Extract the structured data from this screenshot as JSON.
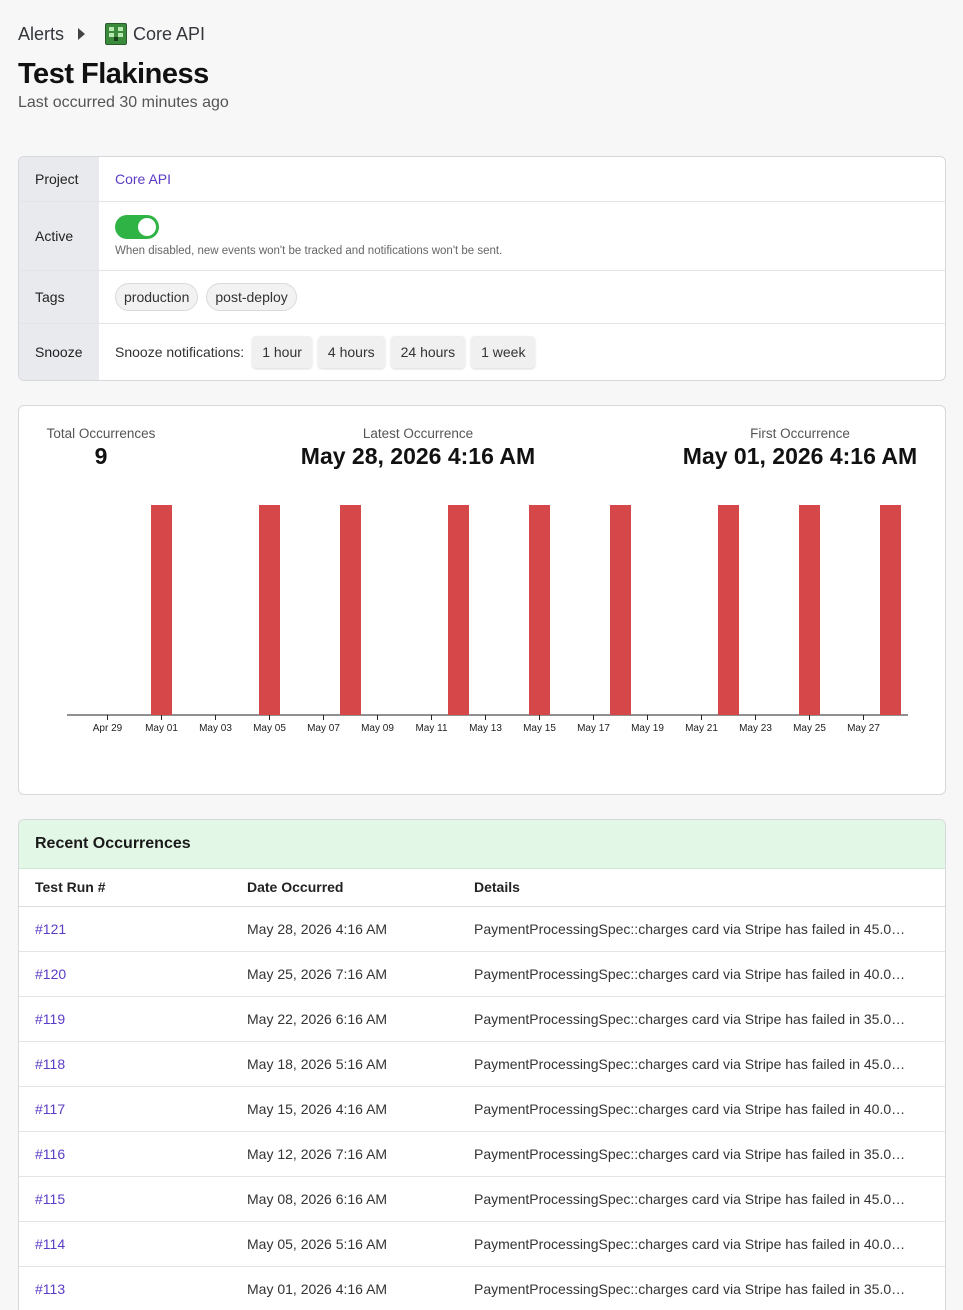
{
  "breadcrumb": {
    "root": "Alerts",
    "project": "Core API"
  },
  "title": "Test Flakiness",
  "subtitle": "Last occurred 30 minutes ago",
  "properties": {
    "project_label": "Project",
    "project_value": "Core API",
    "active_label": "Active",
    "active_on": true,
    "active_hint": "When disabled, new events won't be tracked and notifications won't be sent.",
    "tags_label": "Tags",
    "tags": [
      "production",
      "post-deploy"
    ],
    "snooze_label": "Snooze",
    "snooze_prompt": "Snooze notifications:",
    "snooze_options": [
      "1 hour",
      "4 hours",
      "24 hours",
      "1 week"
    ]
  },
  "stats": {
    "total_label": "Total Occurrences",
    "total_value": "9",
    "latest_label": "Latest Occurrence",
    "latest_value": "May 28, 2026 4:16 AM",
    "first_label": "First Occurrence",
    "first_value": "May 01, 2026 4:16 AM"
  },
  "chart_data": {
    "type": "bar",
    "title": "",
    "xlabel": "",
    "ylabel": "",
    "x": [
      "May 01",
      "May 05",
      "May 08",
      "May 12",
      "May 15",
      "May 18",
      "May 22",
      "May 25",
      "May 28"
    ],
    "values": [
      1,
      1,
      1,
      1,
      1,
      1,
      1,
      1,
      1
    ],
    "x_ticks": [
      "Apr 29",
      "May 01",
      "May 03",
      "May 05",
      "May 07",
      "May 09",
      "May 11",
      "May 13",
      "May 15",
      "May 17",
      "May 19",
      "May 21",
      "May 23",
      "May 25",
      "May 27"
    ],
    "x_range": [
      "Apr 28",
      "May 28"
    ],
    "color": "#d6474a",
    "grid": false
  },
  "occurrences": {
    "header": "Recent Occurrences",
    "columns": [
      "Test Run #",
      "Date Occurred",
      "Details"
    ],
    "rows": [
      {
        "run": "#121",
        "date": "May 28, 2026 4:16 AM",
        "details": "PaymentProcessingSpec::charges card via Stripe has failed in 45.0% ..."
      },
      {
        "run": "#120",
        "date": "May 25, 2026 7:16 AM",
        "details": "PaymentProcessingSpec::charges card via Stripe has failed in 40.0%..."
      },
      {
        "run": "#119",
        "date": "May 22, 2026 6:16 AM",
        "details": "PaymentProcessingSpec::charges card via Stripe has failed in 35.0% ..."
      },
      {
        "run": "#118",
        "date": "May 18, 2026 5:16 AM",
        "details": "PaymentProcessingSpec::charges card via Stripe has failed in 45.0% ..."
      },
      {
        "run": "#117",
        "date": "May 15, 2026 4:16 AM",
        "details": "PaymentProcessingSpec::charges card via Stripe has failed in 40.0%..."
      },
      {
        "run": "#116",
        "date": "May 12, 2026 7:16 AM",
        "details": "PaymentProcessingSpec::charges card via Stripe has failed in 35.0% ..."
      },
      {
        "run": "#115",
        "date": "May 08, 2026 6:16 AM",
        "details": "PaymentProcessingSpec::charges card via Stripe has failed in 45.0% ..."
      },
      {
        "run": "#114",
        "date": "May 05, 2026 5:16 AM",
        "details": "PaymentProcessingSpec::charges card via Stripe has failed in 40.0%..."
      },
      {
        "run": "#113",
        "date": "May 01, 2026 4:16 AM",
        "details": "PaymentProcessingSpec::charges card via Stripe has failed in 35.0% ..."
      }
    ]
  }
}
